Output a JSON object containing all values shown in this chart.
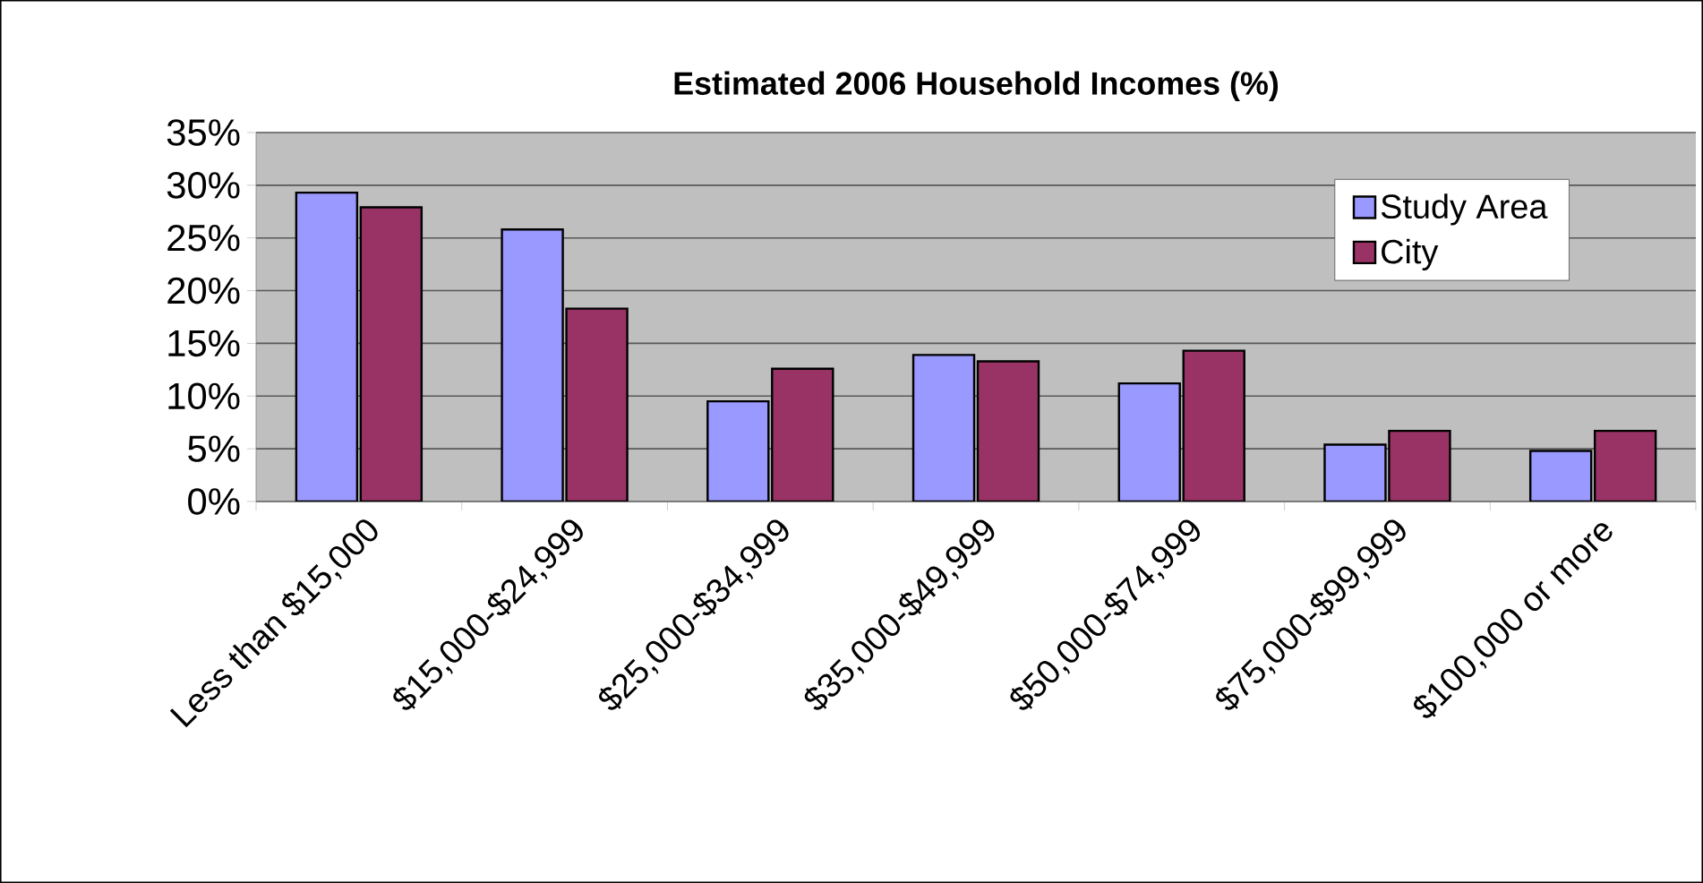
{
  "chart_data": {
    "type": "bar",
    "title": "Estimated 2006 Household Incomes (%)",
    "categories": [
      "Less than $15,000",
      "$15,000-$24,999",
      "$25,000-$34,999",
      "$35,000-$49,999",
      "$50,000-$74,999",
      "$75,000-$99,999",
      "$100,000 or more"
    ],
    "series": [
      {
        "name": "Study Area",
        "color": "#9999ff",
        "values": [
          29.3,
          25.8,
          9.5,
          13.9,
          11.2,
          5.4,
          4.8
        ]
      },
      {
        "name": "City",
        "color": "#993366",
        "values": [
          27.9,
          18.3,
          12.6,
          13.3,
          14.3,
          6.7,
          6.7
        ]
      }
    ],
    "ylim": [
      0,
      35
    ],
    "yticks": [
      {
        "value": 0,
        "label": "0%"
      },
      {
        "value": 5,
        "label": "5%"
      },
      {
        "value": 10,
        "label": "10%"
      },
      {
        "value": 15,
        "label": "15%"
      },
      {
        "value": 20,
        "label": "20%"
      },
      {
        "value": 25,
        "label": "25%"
      },
      {
        "value": 30,
        "label": "30%"
      },
      {
        "value": 35,
        "label": "35%"
      }
    ],
    "grid": "y",
    "legend": "top right"
  }
}
